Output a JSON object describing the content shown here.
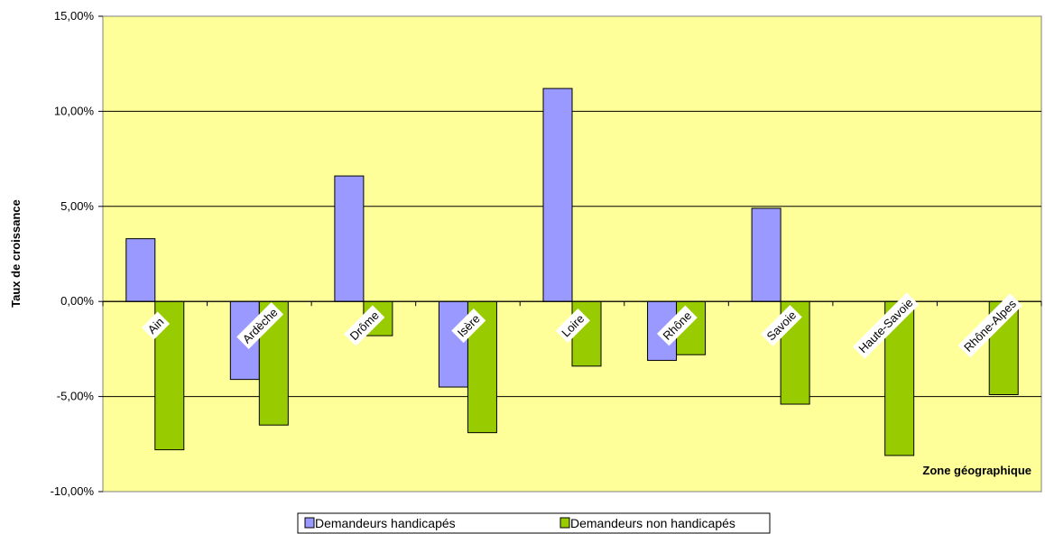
{
  "chart_data": {
    "type": "bar",
    "ylabel": "Taux de croissance",
    "xlabel": "Zone géographique",
    "categories": [
      "Ain",
      "Ardèche",
      "Drôme",
      "Isère",
      "Loire",
      "Rhône",
      "Savoie",
      "Haute-Savoie",
      "Rhône-Alpes"
    ],
    "series": [
      {
        "name": "Demandeurs handicapés",
        "values": [
          3.3,
          -4.1,
          6.6,
          -4.5,
          11.2,
          -3.1,
          4.9,
          0.0,
          0.0
        ],
        "color": "#9999ff"
      },
      {
        "name": "Demandeurs non handicapés",
        "values": [
          -7.8,
          -6.5,
          -1.8,
          -6.9,
          -3.4,
          -2.8,
          -5.4,
          -8.1,
          -4.9
        ],
        "color": "#99cc00"
      }
    ],
    "ylim": [
      -10,
      15
    ],
    "yticks": [
      -10,
      -5,
      0,
      5,
      10,
      15
    ],
    "ytick_labels": [
      "-10,00%",
      "-5,00%",
      "0,00%",
      "5,00%",
      "10,00%",
      "15,00%"
    ],
    "grid": true,
    "plot_background": "#ffff99",
    "legend_position": "bottom"
  }
}
